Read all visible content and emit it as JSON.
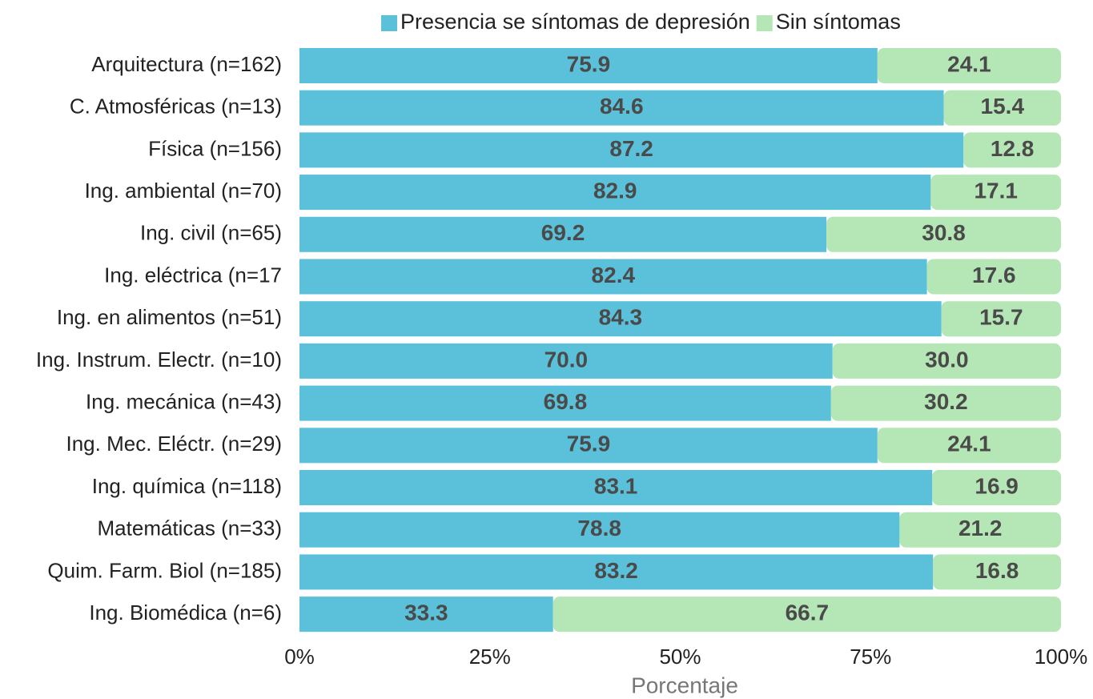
{
  "chart_data": {
    "type": "stacked_barh",
    "xlabel": "Porcentaje",
    "categories": [
      "Arquitectura (n=162)",
      "C. Atmosféricas (n=13)",
      "Física (n=156)",
      "Ing. ambiental (n=70)",
      "Ing. civil (n=65)",
      "Ing. eléctrica (n=17",
      "Ing. en alimentos (n=51)",
      "Ing. Instrum. Electr. (n=10)",
      "Ing. mecánica (n=43)",
      "Ing. Mec. Eléctr. (n=29)",
      "Ing. química (n=118)",
      "Matemáticas (n=33)",
      "Quim. Farm. Biol (n=185)",
      "Ing. Biomédica (n=6)"
    ],
    "series": [
      {
        "name": "Presencia se síntomas de depresión",
        "color": "#5bc0d9",
        "values": [
          75.9,
          84.6,
          87.2,
          82.9,
          69.2,
          82.4,
          84.3,
          70,
          69.8,
          75.9,
          83.1,
          78.8,
          83.2,
          33.3
        ],
        "value_labels": [
          "75.9",
          "84.6",
          "87.2",
          "82.9",
          "69.2",
          "82.4",
          "84.3",
          "70.0",
          "69.8",
          "75.9",
          "83.1",
          "78.8",
          "83.2",
          "33.3"
        ]
      },
      {
        "name": "Sin síntomas",
        "color": "#b5e6b5",
        "values": [
          24.1,
          15.4,
          12.8,
          17.1,
          30.8,
          17.6,
          15.7,
          30,
          30.2,
          24.1,
          16.9,
          21.2,
          16.8,
          66.7
        ],
        "value_labels": [
          "24.1",
          "15.4",
          "12.8",
          "17.1",
          "30.8",
          "17.6",
          "15.7",
          "30.0",
          "30.2",
          "24.1",
          "16.9",
          "21.2",
          "16.8",
          "66.7"
        ]
      }
    ],
    "xlim": [
      0,
      100
    ],
    "xticks": [
      {
        "value": 0,
        "label": "0%"
      },
      {
        "value": 25,
        "label": "25%"
      },
      {
        "value": 50,
        "label": "50%"
      },
      {
        "value": 75,
        "label": "75%"
      },
      {
        "value": 100,
        "label": "100%"
      }
    ],
    "legend": "top"
  }
}
